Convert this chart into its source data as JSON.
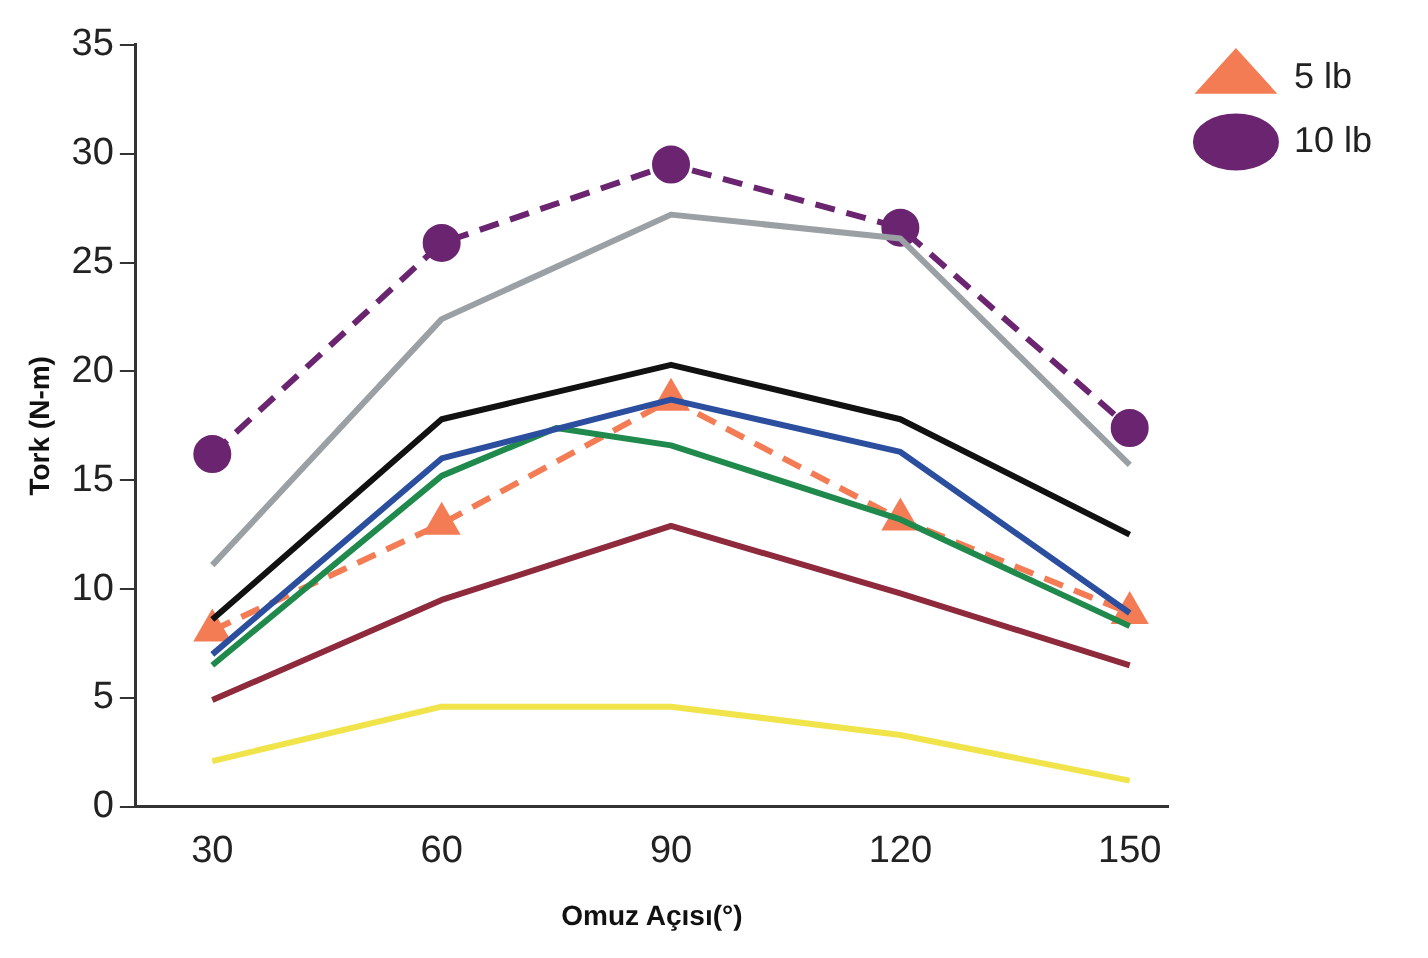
{
  "chart_data": {
    "type": "line",
    "xlabel": "Omuz Açısı(°)",
    "ylabel": "Tork (N-m)",
    "x": [
      30,
      60,
      90,
      120,
      150
    ],
    "xlim": [
      20,
      155
    ],
    "xticks": [
      30,
      60,
      90,
      120,
      150
    ],
    "ylim": [
      0,
      35
    ],
    "yticks": [
      0,
      5,
      10,
      15,
      20,
      25,
      30,
      35
    ],
    "grid": false,
    "legend": "top right",
    "series": [
      {
        "color": "#9aa0a3",
        "values": [
          11.1,
          22.4,
          27.2,
          26.1,
          15.7
        ],
        "marker": "none",
        "line_style": "solid"
      },
      {
        "color": "#111111",
        "values": [
          8.6,
          17.8,
          20.3,
          17.8,
          12.5
        ],
        "marker": "none",
        "line_style": "solid"
      },
      {
        "color": "#2b4f9e",
        "values": [
          7.0,
          16,
          18.7,
          16.3,
          8.9
        ],
        "marker": "none",
        "line_style": "solid"
      },
      {
        "color": "#1f8a4c",
        "x": [
          30,
          60,
          75,
          90,
          120,
          150
        ],
        "values": [
          6.5,
          15.2,
          17.4,
          16.6,
          13.2,
          8.3
        ],
        "marker": "none",
        "line_style": "solid"
      },
      {
        "color": "#8e2a3c",
        "values": [
          4.9,
          9.5,
          12.9,
          9.8,
          6.5
        ],
        "marker": "none",
        "line_style": "solid"
      },
      {
        "color": "#f0e44a",
        "values": [
          2.1,
          4.6,
          4.6,
          3.3,
          1.2
        ],
        "marker": "none",
        "line_style": "solid"
      },
      {
        "name": "5 lb",
        "color": "#f47c55",
        "values": [
          8.1,
          13.0,
          18.7,
          13.2,
          8.9
        ],
        "marker": "triangle",
        "line_style": "dashed"
      },
      {
        "name": "10 lb",
        "color": "#6b2570",
        "values": [
          16.2,
          25.9,
          29.5,
          26.6,
          17.4
        ],
        "marker": "circle",
        "line_style": "dashed"
      }
    ]
  }
}
